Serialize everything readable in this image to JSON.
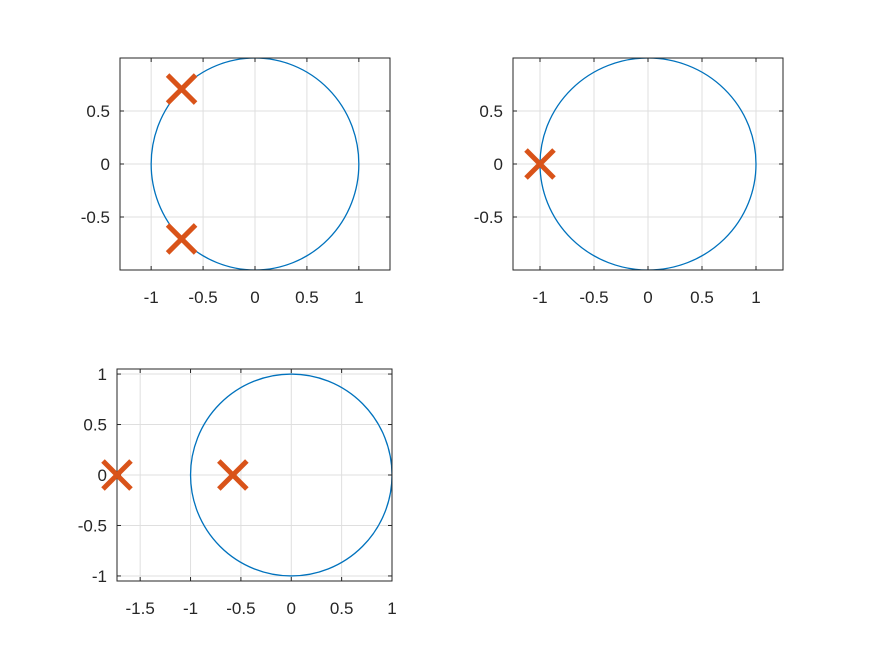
{
  "colors": {
    "circle": "#0072BD",
    "marker": "#D95319",
    "axis": "#262626",
    "grid": "#DFDFDF",
    "background": "#FFFFFF"
  },
  "chart_data": [
    {
      "type": "scatter",
      "title": "",
      "xlabel": "",
      "ylabel": "",
      "xlim": [
        -1.3,
        1.3
      ],
      "ylim": [
        -1.0,
        1.0
      ],
      "xticks": [
        -1,
        -0.5,
        0,
        0.5,
        1
      ],
      "xtick_labels": [
        "-1",
        "-0.5",
        "0",
        "0.5",
        "1"
      ],
      "yticks": [
        -0.5,
        0,
        0.5
      ],
      "ytick_labels": [
        "-0.5",
        "0",
        "0.5"
      ],
      "grid": true,
      "series": [
        {
          "kind": "unit-circle",
          "center": [
            0,
            0
          ],
          "radius": 1
        },
        {
          "kind": "x-markers",
          "points": [
            [
              -0.707,
              0.707
            ],
            [
              -0.707,
              -0.707
            ]
          ]
        }
      ]
    },
    {
      "type": "scatter",
      "title": "",
      "xlabel": "",
      "ylabel": "",
      "xlim": [
        -1.25,
        1.25
      ],
      "ylim": [
        -1.0,
        1.0
      ],
      "xticks": [
        -1,
        -0.5,
        0,
        0.5,
        1
      ],
      "xtick_labels": [
        "-1",
        "-0.5",
        "0",
        "0.5",
        "1"
      ],
      "yticks": [
        -0.5,
        0,
        0.5
      ],
      "ytick_labels": [
        "-0.5",
        "0",
        "0.5"
      ],
      "grid": true,
      "series": [
        {
          "kind": "unit-circle",
          "center": [
            0,
            0
          ],
          "radius": 1
        },
        {
          "kind": "x-markers",
          "points": [
            [
              -1,
              0
            ]
          ]
        }
      ]
    },
    {
      "type": "scatter",
      "title": "",
      "xlabel": "",
      "ylabel": "",
      "xlim": [
        -1.73,
        1.0
      ],
      "ylim": [
        -1.05,
        1.05
      ],
      "xticks": [
        -1.5,
        -1,
        -0.5,
        0,
        0.5,
        1
      ],
      "xtick_labels": [
        "-1.5",
        "-1",
        "-0.5",
        "0",
        "0.5",
        "1"
      ],
      "yticks": [
        -1,
        -0.5,
        0,
        0.5,
        1
      ],
      "ytick_labels": [
        "-1",
        "-0.5",
        "0",
        "0.5",
        "1"
      ],
      "grid": true,
      "series": [
        {
          "kind": "unit-circle",
          "center": [
            0,
            0
          ],
          "radius": 1
        },
        {
          "kind": "x-markers",
          "points": [
            [
              -1.73,
              0
            ],
            [
              -0.58,
              0
            ]
          ]
        }
      ]
    }
  ]
}
